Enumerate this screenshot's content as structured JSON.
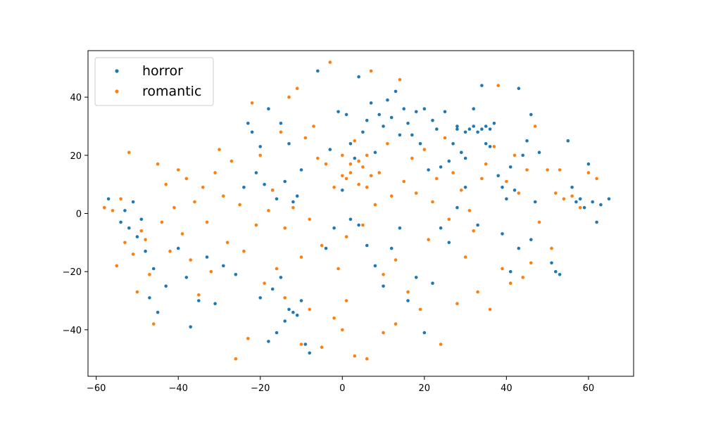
{
  "chart_data": {
    "type": "scatter",
    "xlim": [
      -62,
      71
    ],
    "ylim": [
      -56,
      56
    ],
    "x_ticks": [
      -60,
      -40,
      -20,
      0,
      20,
      40,
      60
    ],
    "y_ticks": [
      -40,
      -20,
      0,
      20,
      40
    ],
    "grid": false,
    "legend_position": "top-left",
    "series": [
      {
        "name": "horror",
        "color": "#1f77b4",
        "points": [
          [
            -58,
            2
          ],
          [
            -57,
            5
          ],
          [
            -54,
            -3
          ],
          [
            -53,
            1
          ],
          [
            -52,
            -5
          ],
          [
            -51,
            4
          ],
          [
            -50,
            -8
          ],
          [
            -49,
            -2
          ],
          [
            -48,
            -13
          ],
          [
            -47,
            -29
          ],
          [
            -46,
            -19
          ],
          [
            -45,
            -34
          ],
          [
            -43,
            -25
          ],
          [
            -40,
            -12
          ],
          [
            -38,
            -22
          ],
          [
            -37,
            -39
          ],
          [
            -35,
            -30
          ],
          [
            -33,
            -15
          ],
          [
            -31,
            -31
          ],
          [
            -29,
            -18
          ],
          [
            -26,
            -21
          ],
          [
            -24,
            9
          ],
          [
            -23,
            31
          ],
          [
            -22,
            28
          ],
          [
            -21,
            14
          ],
          [
            -20,
            23
          ],
          [
            -19,
            10
          ],
          [
            -18,
            36
          ],
          [
            -17,
            8
          ],
          [
            -16,
            5
          ],
          [
            -15,
            31
          ],
          [
            -14,
            11
          ],
          [
            -13,
            24
          ],
          [
            -12,
            4
          ],
          [
            -11,
            6
          ],
          [
            -10,
            15
          ],
          [
            -18,
            -44
          ],
          [
            -16,
            -41
          ],
          [
            -14,
            -37
          ],
          [
            -13,
            -33
          ],
          [
            -12,
            -34
          ],
          [
            -11,
            -35
          ],
          [
            -10,
            -30
          ],
          [
            -9,
            -45
          ],
          [
            -8,
            -48
          ],
          [
            -20,
            -29
          ],
          [
            -17,
            -26
          ],
          [
            -15,
            -22
          ],
          [
            -6,
            49
          ],
          [
            -3,
            22
          ],
          [
            -1,
            35
          ],
          [
            1,
            34
          ],
          [
            2,
            24
          ],
          [
            3,
            19
          ],
          [
            4,
            47
          ],
          [
            5,
            28
          ],
          [
            6,
            32
          ],
          [
            7,
            38
          ],
          [
            8,
            21
          ],
          [
            9,
            34
          ],
          [
            10,
            30
          ],
          [
            11,
            39
          ],
          [
            12,
            33
          ],
          [
            13,
            42
          ],
          [
            14,
            27
          ],
          [
            15,
            36
          ],
          [
            16,
            31
          ],
          [
            17,
            27
          ],
          [
            18,
            35
          ],
          [
            19,
            24
          ],
          [
            20,
            36
          ],
          [
            21,
            15
          ],
          [
            22,
            32
          ],
          [
            23,
            29
          ],
          [
            24,
            16
          ],
          [
            25,
            35
          ],
          [
            26,
            18
          ],
          [
            27,
            24
          ],
          [
            28,
            30
          ],
          [
            29,
            21
          ],
          [
            30,
            19
          ],
          [
            31,
            29
          ],
          [
            32,
            36
          ],
          [
            33,
            28
          ],
          [
            34,
            44
          ],
          [
            35,
            24
          ],
          [
            36,
            23
          ],
          [
            37,
            31
          ],
          [
            38,
            13
          ],
          [
            39,
            9
          ],
          [
            40,
            5
          ],
          [
            41,
            16
          ],
          [
            42,
            8
          ],
          [
            43,
            43
          ],
          [
            44,
            20
          ],
          [
            45,
            25
          ],
          [
            46,
            34
          ],
          [
            47,
            4
          ],
          [
            48,
            21
          ],
          [
            39,
            -7
          ],
          [
            41,
            -20
          ],
          [
            43,
            -12
          ],
          [
            46,
            -9
          ],
          [
            33,
            -4
          ],
          [
            30,
            9
          ],
          [
            28,
            2
          ],
          [
            26,
            -10
          ],
          [
            24,
            -5
          ],
          [
            22,
            -24
          ],
          [
            20,
            -41
          ],
          [
            18,
            -22
          ],
          [
            16,
            -30
          ],
          [
            14,
            -5
          ],
          [
            12,
            -12
          ],
          [
            10,
            -25
          ],
          [
            8,
            -18
          ],
          [
            6,
            -11
          ],
          [
            4,
            -4
          ],
          [
            2,
            -2
          ],
          [
            0,
            8
          ],
          [
            -2,
            -5
          ],
          [
            -4,
            -12
          ],
          [
            55,
            25
          ],
          [
            56,
            9
          ],
          [
            58,
            5
          ],
          [
            60,
            17
          ],
          [
            61,
            4
          ],
          [
            62,
            -3
          ],
          [
            63,
            3
          ],
          [
            65,
            5
          ],
          [
            52,
            -20
          ],
          [
            51,
            -17
          ],
          [
            53,
            -21
          ],
          [
            57,
            4
          ],
          [
            59,
            2
          ],
          [
            35,
            30
          ],
          [
            36,
            29
          ],
          [
            34,
            29
          ],
          [
            32,
            30
          ],
          [
            30,
            28
          ],
          [
            28,
            29
          ]
        ]
      },
      {
        "name": "romantic",
        "color": "#ff7f0e",
        "points": [
          [
            -58,
            2
          ],
          [
            -56,
            1
          ],
          [
            -55,
            -18
          ],
          [
            -54,
            5
          ],
          [
            -53,
            -10
          ],
          [
            -52,
            21
          ],
          [
            -51,
            -14
          ],
          [
            -50,
            -27
          ],
          [
            -49,
            -6
          ],
          [
            -48,
            -9
          ],
          [
            -47,
            -21
          ],
          [
            -46,
            -38
          ],
          [
            -45,
            17
          ],
          [
            -44,
            -3
          ],
          [
            -43,
            10
          ],
          [
            -42,
            -13
          ],
          [
            -41,
            2
          ],
          [
            -40,
            15
          ],
          [
            -39,
            -7
          ],
          [
            -38,
            12
          ],
          [
            -37,
            -16
          ],
          [
            -36,
            4
          ],
          [
            -35,
            -28
          ],
          [
            -34,
            9
          ],
          [
            -33,
            -3
          ],
          [
            -32,
            -20
          ],
          [
            -31,
            14
          ],
          [
            -30,
            22
          ],
          [
            -29,
            6
          ],
          [
            -28,
            -10
          ],
          [
            -27,
            18
          ],
          [
            -26,
            -50
          ],
          [
            -25,
            3
          ],
          [
            -24,
            -13
          ],
          [
            -23,
            -43
          ],
          [
            -22,
            38
          ],
          [
            -21,
            -4
          ],
          [
            -20,
            20
          ],
          [
            -19,
            -24
          ],
          [
            -18,
            1
          ],
          [
            -17,
            8
          ],
          [
            -16,
            -19
          ],
          [
            -15,
            28
          ],
          [
            -14,
            -5
          ],
          [
            -13,
            40
          ],
          [
            -12,
            2
          ],
          [
            -11,
            43
          ],
          [
            -10,
            -15
          ],
          [
            -9,
            26
          ],
          [
            -8,
            -2
          ],
          [
            -7,
            30
          ],
          [
            -6,
            19
          ],
          [
            -5,
            -11
          ],
          [
            -4,
            17
          ],
          [
            -3,
            52
          ],
          [
            -2,
            9
          ],
          [
            -1,
            -19
          ],
          [
            0,
            13
          ],
          [
            1,
            -8
          ],
          [
            2,
            17
          ],
          [
            3,
            25
          ],
          [
            4,
            10
          ],
          [
            5,
            -4
          ],
          [
            6,
            20
          ],
          [
            7,
            49
          ],
          [
            8,
            3
          ],
          [
            9,
            14
          ],
          [
            10,
            -21
          ],
          [
            11,
            24
          ],
          [
            12,
            6
          ],
          [
            13,
            -16
          ],
          [
            14,
            46
          ],
          [
            15,
            11
          ],
          [
            16,
            -27
          ],
          [
            17,
            19
          ],
          [
            18,
            7
          ],
          [
            19,
            -33
          ],
          [
            20,
            22
          ],
          [
            21,
            -9
          ],
          [
            22,
            4
          ],
          [
            23,
            12
          ],
          [
            24,
            -45
          ],
          [
            25,
            26
          ],
          [
            26,
            -2
          ],
          [
            27,
            14
          ],
          [
            28,
            -31
          ],
          [
            29,
            8
          ],
          [
            30,
            -15
          ],
          [
            31,
            1
          ],
          [
            32,
            -6
          ],
          [
            33,
            -27
          ],
          [
            34,
            12
          ],
          [
            35,
            17
          ],
          [
            36,
            -33
          ],
          [
            37,
            23
          ],
          [
            38,
            44
          ],
          [
            39,
            -19
          ],
          [
            40,
            11
          ],
          [
            41,
            -24
          ],
          [
            42,
            20
          ],
          [
            43,
            7
          ],
          [
            44,
            -22
          ],
          [
            45,
            15
          ],
          [
            46,
            -17
          ],
          [
            47,
            30
          ],
          [
            48,
            -3
          ],
          [
            50,
            15
          ],
          [
            51,
            -12
          ],
          [
            52,
            7
          ],
          [
            53,
            15
          ],
          [
            54,
            5
          ],
          [
            56,
            6
          ],
          [
            58,
            2
          ],
          [
            60,
            14
          ],
          [
            62,
            12
          ],
          [
            -10,
            -45
          ],
          [
            -5,
            -46
          ],
          [
            0,
            -40
          ],
          [
            3,
            -49
          ],
          [
            6,
            -50
          ],
          [
            10,
            -41
          ],
          [
            13,
            -38
          ],
          [
            1,
            -30
          ],
          [
            -2,
            -36
          ],
          [
            -8,
            -33
          ],
          [
            -14,
            -29
          ],
          [
            5,
            16
          ],
          [
            4,
            18
          ],
          [
            2,
            14
          ],
          [
            1,
            12
          ],
          [
            0,
            20
          ],
          [
            7,
            13
          ],
          [
            6,
            9
          ]
        ]
      }
    ]
  }
}
